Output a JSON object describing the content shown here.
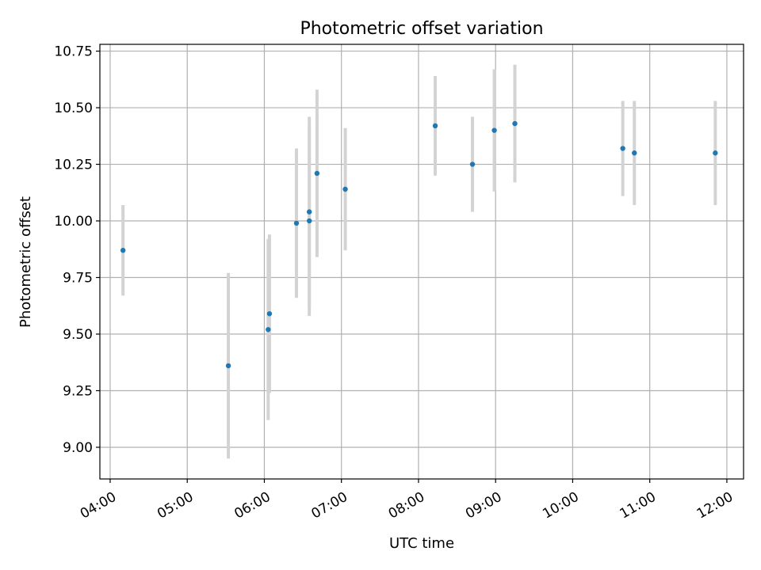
{
  "chart_data": {
    "type": "scatter",
    "title": "Photometric offset variation",
    "xlabel": "UTC time",
    "ylabel": "Photometric offset",
    "x_ticks": [
      "04:00",
      "05:00",
      "06:00",
      "07:00",
      "08:00",
      "09:00",
      "10:00",
      "11:00",
      "12:00"
    ],
    "y_ticks": [
      "9.00",
      "9.25",
      "9.50",
      "9.75",
      "10.00",
      "10.25",
      "10.50",
      "10.75"
    ],
    "xlim": [
      "03:52",
      "12:13"
    ],
    "ylim": [
      8.86,
      10.78
    ],
    "grid": true,
    "marker_color": "#1f77b4",
    "errorbar_color": "#d3d3d3",
    "series": [
      {
        "points": [
          {
            "x": "04:10",
            "y": 9.87,
            "err": 0.2
          },
          {
            "x": "05:32",
            "y": 9.36,
            "err": 0.41
          },
          {
            "x": "06:03",
            "y": 9.52,
            "err": 0.4
          },
          {
            "x": "06:04",
            "y": 9.59,
            "err": 0.35
          },
          {
            "x": "06:25",
            "y": 9.99,
            "err": 0.33
          },
          {
            "x": "06:35",
            "y": 10.0,
            "err": 0.42
          },
          {
            "x": "06:35",
            "y": 10.04,
            "err": 0.42
          },
          {
            "x": "06:41",
            "y": 10.21,
            "err": 0.37
          },
          {
            "x": "07:03",
            "y": 10.14,
            "err": 0.27
          },
          {
            "x": "08:13",
            "y": 10.42,
            "err": 0.22
          },
          {
            "x": "08:42",
            "y": 10.25,
            "err": 0.21
          },
          {
            "x": "08:59",
            "y": 10.4,
            "err": 0.27
          },
          {
            "x": "09:15",
            "y": 10.43,
            "err": 0.26
          },
          {
            "x": "10:39",
            "y": 10.32,
            "err": 0.21
          },
          {
            "x": "10:48",
            "y": 10.3,
            "err": 0.23
          },
          {
            "x": "11:51",
            "y": 10.3,
            "err": 0.23
          }
        ]
      }
    ]
  }
}
